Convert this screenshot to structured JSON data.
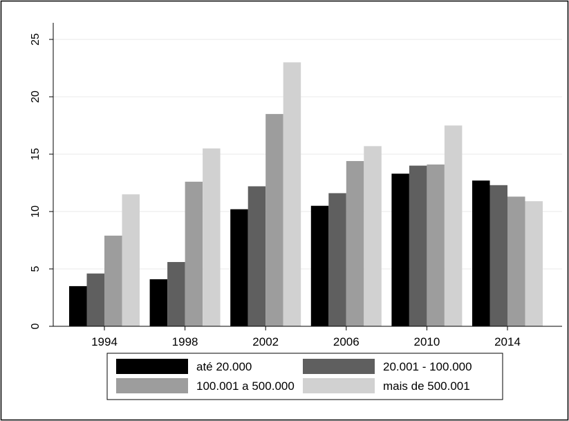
{
  "chart_data": {
    "type": "bar",
    "categories": [
      "1994",
      "1998",
      "2002",
      "2006",
      "2010",
      "2014"
    ],
    "series": [
      {
        "name": "até 20.000",
        "color": "#000000",
        "values": [
          3.5,
          4.1,
          10.2,
          10.5,
          13.3,
          12.7
        ]
      },
      {
        "name": "20.001 - 100.000",
        "color": "#5f5f5f",
        "values": [
          4.6,
          5.6,
          12.2,
          11.6,
          14.0,
          12.3
        ]
      },
      {
        "name": "100.001 a 500.000",
        "color": "#9d9d9d",
        "values": [
          7.9,
          12.6,
          18.5,
          14.4,
          14.1,
          11.3
        ]
      },
      {
        "name": "mais de 500.001",
        "color": "#d1d1d1",
        "values": [
          11.5,
          15.5,
          23.0,
          15.7,
          17.5,
          10.9
        ]
      }
    ],
    "ylim": [
      0,
      25
    ],
    "yticks": [
      0,
      5,
      10,
      15,
      20,
      25
    ],
    "grid": true,
    "legend": "bottom",
    "title": "",
    "xlabel": "",
    "ylabel": ""
  }
}
